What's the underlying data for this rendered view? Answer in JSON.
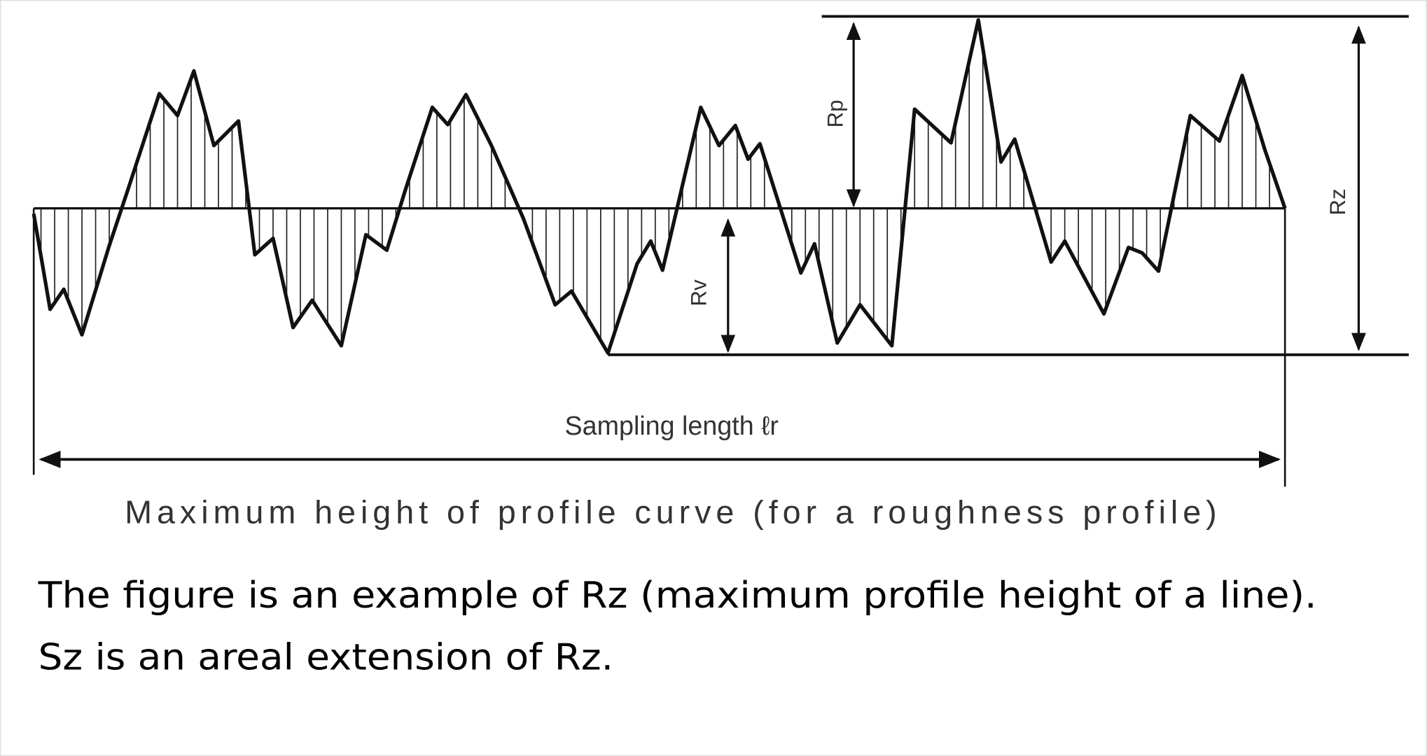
{
  "diagram": {
    "labels": {
      "rp": "Rp",
      "rv": "Rv",
      "rz": "Rz",
      "sampling_length": "Sampling length ℓr"
    },
    "caption": "Maximum height of profile curve (for a roughness profile)"
  },
  "description": {
    "line1": "The figure is an example of Rz (maximum profile height of a line).",
    "line2": "Sz is an areal extension of Rz."
  },
  "colors": {
    "line": "#111111",
    "text": "#333333",
    "background": "#ffffff"
  }
}
